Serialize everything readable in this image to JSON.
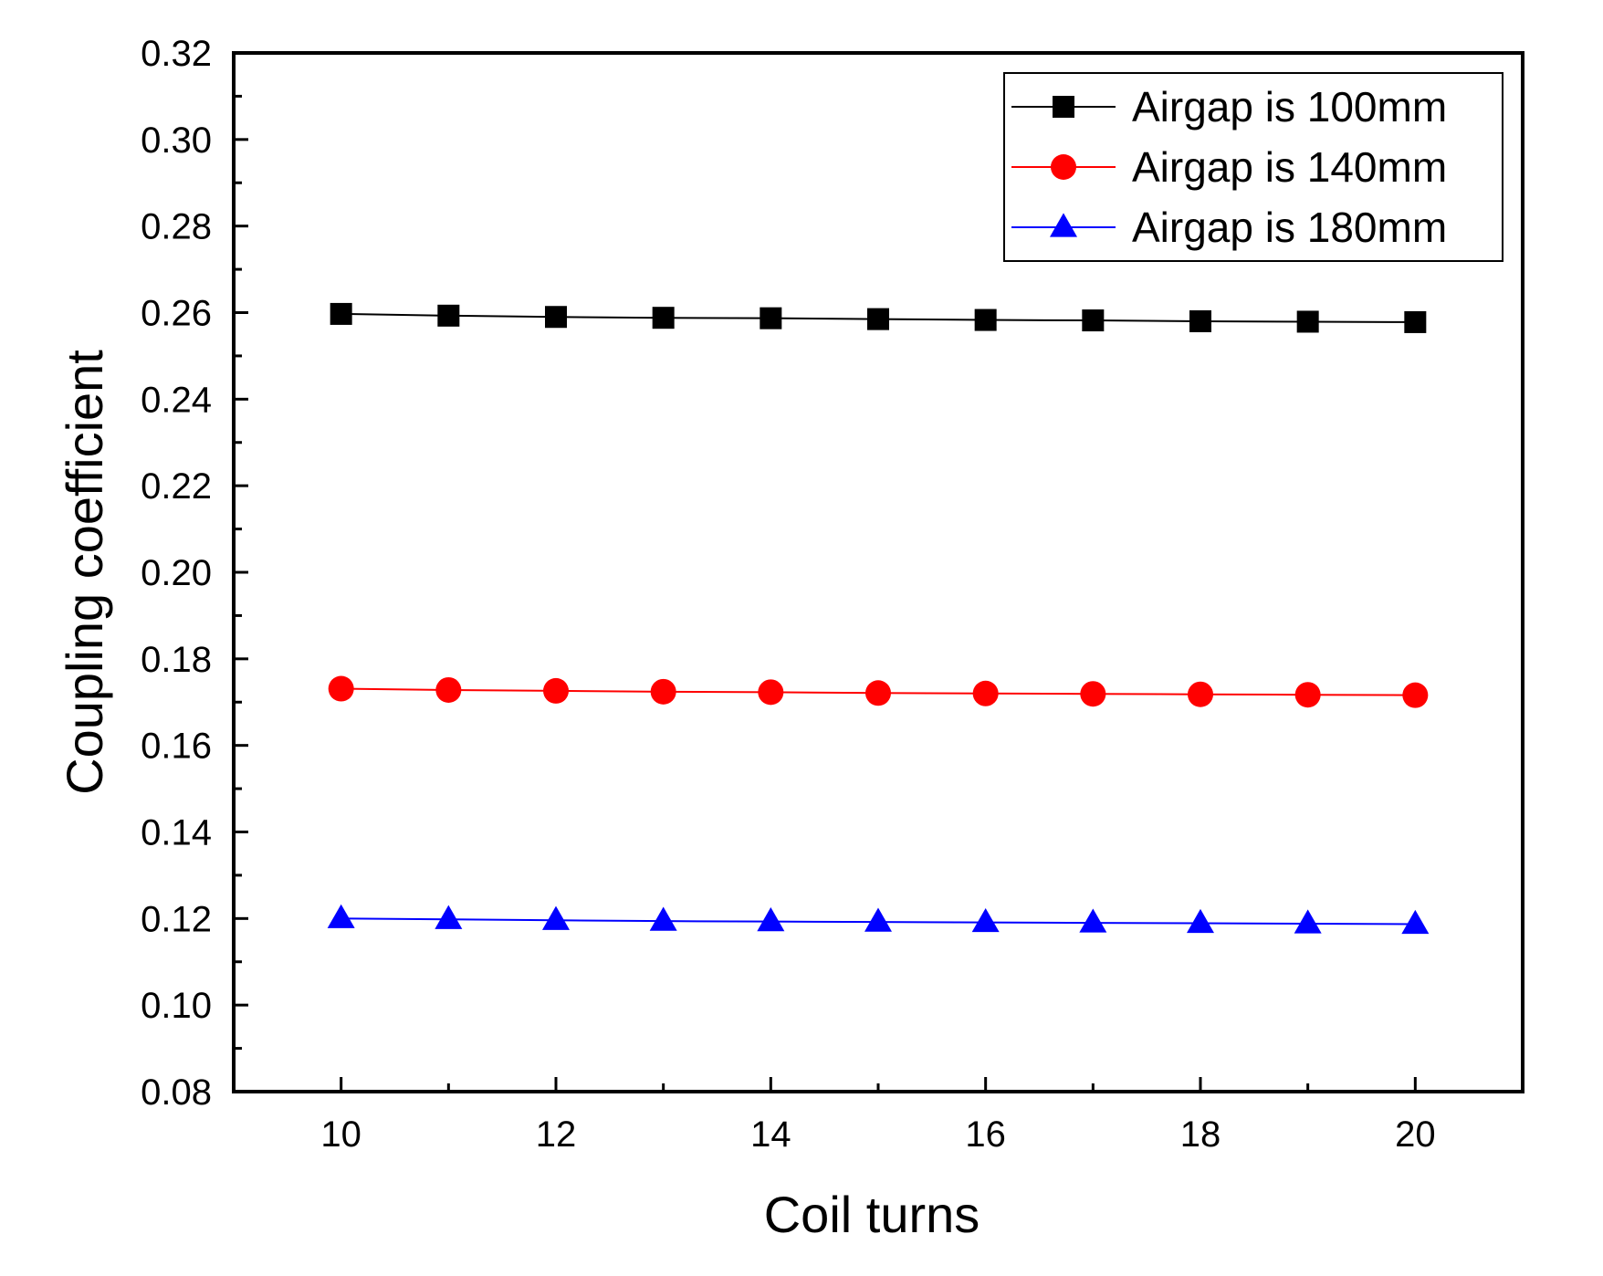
{
  "chart_data": {
    "type": "line",
    "title": "",
    "xlabel": "Coil turns",
    "ylabel": "Coupling coefficient",
    "xlim": [
      9,
      21
    ],
    "ylim": [
      0.08,
      0.32
    ],
    "xticks": [
      10,
      12,
      14,
      16,
      18,
      20
    ],
    "xtick_labels": [
      "10",
      "12",
      "14",
      "16",
      "18",
      "20"
    ],
    "yticks": [
      0.08,
      0.1,
      0.12,
      0.14,
      0.16,
      0.18,
      0.2,
      0.22,
      0.24,
      0.26,
      0.28,
      0.3,
      0.32
    ],
    "ytick_labels": [
      "0.08",
      "0.10",
      "0.12",
      "0.14",
      "0.16",
      "0.18",
      "0.20",
      "0.22",
      "0.24",
      "0.26",
      "0.28",
      "0.30",
      "0.32"
    ],
    "legend_position": "top-right",
    "x": [
      10,
      11,
      12,
      13,
      14,
      15,
      16,
      17,
      18,
      19,
      20
    ],
    "series": [
      {
        "name": "Airgap is 100mm",
        "color": "#000000",
        "marker": "square",
        "values": [
          0.2597,
          0.2593,
          0.259,
          0.2588,
          0.2587,
          0.2585,
          0.2583,
          0.2582,
          0.258,
          0.2579,
          0.2578
        ]
      },
      {
        "name": "Airgap is 140mm",
        "color": "#ff0000",
        "marker": "circle",
        "values": [
          0.1731,
          0.1728,
          0.1726,
          0.1724,
          0.1723,
          0.1721,
          0.172,
          0.1719,
          0.1718,
          0.1717,
          0.1716
        ]
      },
      {
        "name": "Airgap is 180mm",
        "color": "#0000ff",
        "marker": "triangle",
        "values": [
          0.12,
          0.1198,
          0.1196,
          0.1194,
          0.1193,
          0.1192,
          0.1191,
          0.119,
          0.1189,
          0.1188,
          0.1187
        ]
      }
    ]
  }
}
